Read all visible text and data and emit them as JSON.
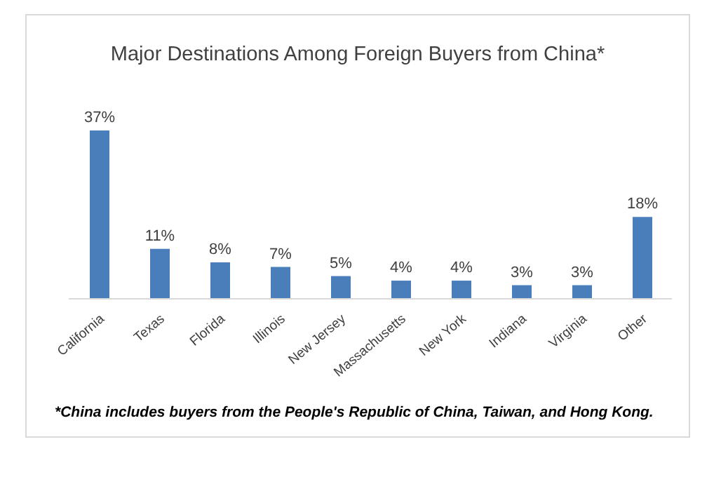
{
  "chart_data": {
    "type": "bar",
    "title": "Major Destinations Among Foreign Buyers from China*",
    "categories": [
      "California",
      "Texas",
      "Florida",
      "Illinois",
      "New Jersey",
      "Massachusetts",
      "New York",
      "Indiana",
      "Virginia",
      "Other"
    ],
    "values": [
      37,
      11,
      8,
      7,
      5,
      4,
      4,
      3,
      3,
      18
    ],
    "value_labels": [
      "37%",
      "11%",
      "8%",
      "7%",
      "5%",
      "4%",
      "4%",
      "3%",
      "3%",
      "18%"
    ],
    "color": "#4a7ebb",
    "grid": false,
    "annotations": [
      "*China includes buyers from the People's Republic of China, Taiwan, and Hong Kong."
    ]
  }
}
